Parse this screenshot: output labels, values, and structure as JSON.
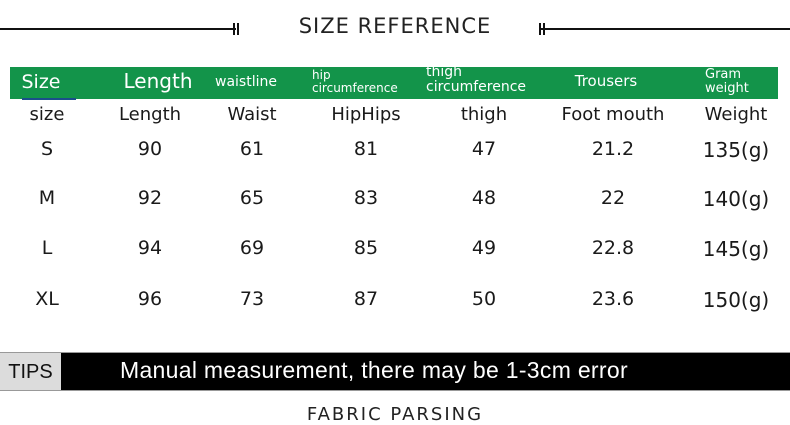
{
  "title": "SIZE REFERENCE",
  "header_colors": {
    "green": "#13944a",
    "tips_bar": "#000000",
    "tips_label_bg": "#dcdcdc"
  },
  "green_header": [
    "Size",
    "Length",
    "waistline",
    "hip\ncircumference",
    "thigh\ncircumference",
    "Trousers",
    "Gram\nweight"
  ],
  "columns": [
    "size",
    "Length",
    "Waist",
    "HipHips",
    "thigh",
    "Foot mouth",
    "Weight"
  ],
  "rows": [
    [
      "S",
      "90",
      "61",
      "81",
      "47",
      "21.2",
      "135(g)"
    ],
    [
      "M",
      "92",
      "65",
      "83",
      "48",
      "22",
      "140(g)"
    ],
    [
      "L",
      "94",
      "69",
      "85",
      "49",
      "22.8",
      "145(g)"
    ],
    [
      "XL",
      "96",
      "73",
      "87",
      "50",
      "23.6",
      "150(g)"
    ]
  ],
  "tips": {
    "label": "TIPS",
    "text": "Manual measurement, there may be 1-3cm error"
  },
  "next_section": "FABRIC PARSING"
}
